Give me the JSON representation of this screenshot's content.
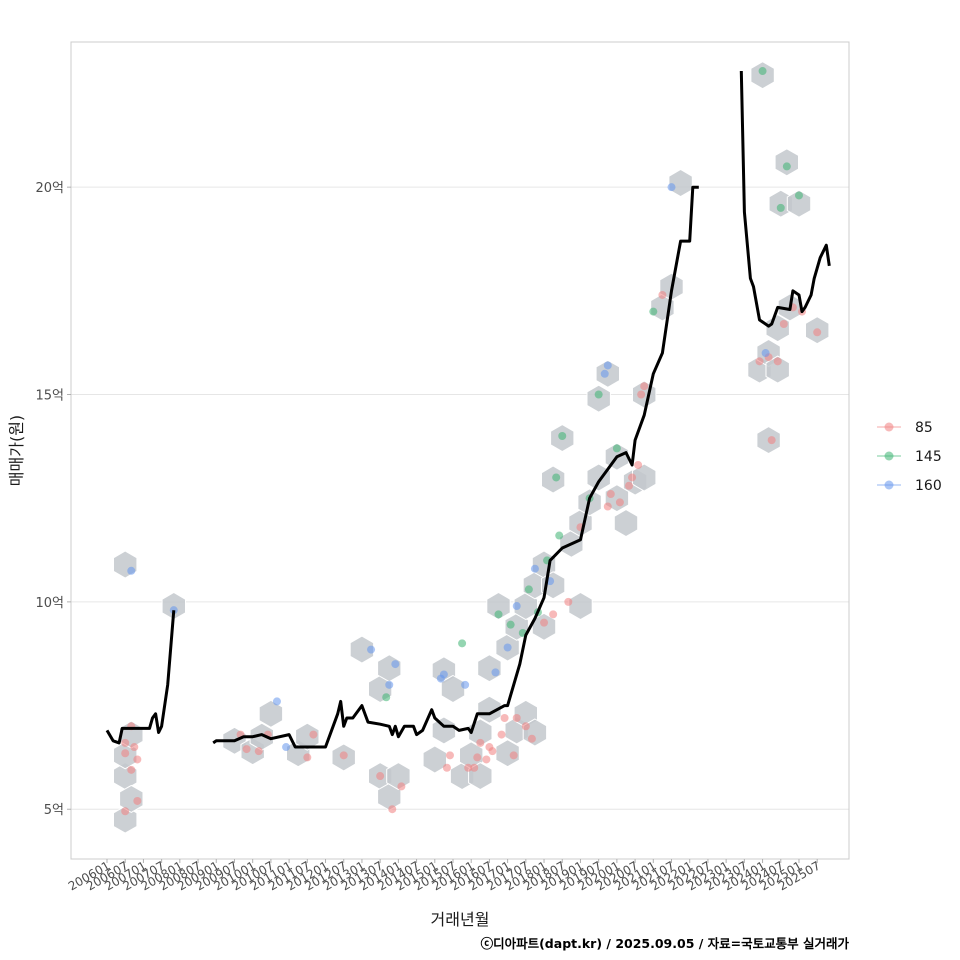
{
  "chart_data": {
    "type": "scatter",
    "title": "",
    "xlabel": "거래년월",
    "ylabel": "매매가(원)",
    "ylim": [
      3.8,
      23.5
    ],
    "grid": true,
    "legend_position": "right",
    "caption": "ⓒ디아파트(dapt.kr) / 2025.09.05 / 자료=국토교통부 실거래가",
    "x_tick_labels": [
      "200601",
      "200607",
      "200701",
      "200707",
      "200801",
      "200807",
      "200901",
      "200907",
      "201001",
      "201007",
      "201101",
      "201107",
      "201201",
      "201207",
      "201301",
      "201307",
      "201401",
      "201407",
      "201501",
      "201507",
      "201601",
      "201607",
      "201701",
      "201707",
      "201801",
      "201807",
      "201901",
      "201907",
      "202001",
      "202007",
      "202101",
      "202107",
      "202201",
      "202207",
      "202301",
      "202307",
      "202401",
      "202407",
      "202501",
      "202507"
    ],
    "y_ticks": [
      {
        "value": 5,
        "label": "5억"
      },
      {
        "value": 10,
        "label": "10억"
      },
      {
        "value": 15,
        "label": "15억"
      },
      {
        "value": 20,
        "label": "20억"
      }
    ],
    "legend": [
      {
        "name": "85",
        "color": "#F08080"
      },
      {
        "name": "145",
        "color": "#3CB371"
      },
      {
        "name": "160",
        "color": "#6495ED"
      }
    ],
    "hex_color": "#C3C8CD",
    "trend_line": {
      "color": "#000000",
      "segments": [
        [
          [
            "200601",
            6.9
          ],
          [
            "200603",
            6.65
          ],
          [
            "200605",
            6.6
          ],
          [
            "200606",
            6.95
          ],
          [
            "200701",
            6.95
          ],
          [
            "200703",
            6.95
          ],
          [
            "200704",
            7.2
          ],
          [
            "200705",
            7.3
          ],
          [
            "200706",
            6.85
          ],
          [
            "200707",
            7.0
          ],
          [
            "200709",
            8.0
          ],
          [
            "200711",
            9.8
          ]
        ],
        [
          [
            "200812",
            6.6
          ],
          [
            "200901",
            6.65
          ],
          [
            "200907",
            6.65
          ],
          [
            "200910",
            6.75
          ],
          [
            "201001",
            6.75
          ],
          [
            "201004",
            6.8
          ],
          [
            "201007",
            6.7
          ],
          [
            "201101",
            6.8
          ],
          [
            "201103",
            6.5
          ],
          [
            "201201",
            6.5
          ],
          [
            "201205",
            7.3
          ],
          [
            "201206",
            7.6
          ],
          [
            "201207",
            7.0
          ],
          [
            "201208",
            7.2
          ],
          [
            "201210",
            7.2
          ],
          [
            "201301",
            7.5
          ],
          [
            "201303",
            7.1
          ],
          [
            "201307",
            7.05
          ],
          [
            "201310",
            7.0
          ],
          [
            "201311",
            6.8
          ],
          [
            "201312",
            7.0
          ],
          [
            "201401",
            6.75
          ],
          [
            "201403",
            7.0
          ],
          [
            "201406",
            7.0
          ],
          [
            "201407",
            6.8
          ],
          [
            "201409",
            6.9
          ],
          [
            "201412",
            7.4
          ],
          [
            "201501",
            7.2
          ],
          [
            "201504",
            7.0
          ],
          [
            "201507",
            7.0
          ],
          [
            "201509",
            6.9
          ],
          [
            "201512",
            6.95
          ],
          [
            "201601",
            6.85
          ],
          [
            "201603",
            7.3
          ],
          [
            "201607",
            7.3
          ],
          [
            "201612",
            7.5
          ],
          [
            "201701",
            7.5
          ],
          [
            "201703",
            8.0
          ],
          [
            "201705",
            8.5
          ],
          [
            "201707",
            9.2
          ],
          [
            "201710",
            9.6
          ],
          [
            "201801",
            10.1
          ],
          [
            "201803",
            11.0
          ],
          [
            "201807",
            11.3
          ],
          [
            "201901",
            11.5
          ],
          [
            "201904",
            12.5
          ],
          [
            "201907",
            12.9
          ],
          [
            "201910",
            13.2
          ],
          [
            "202001",
            13.5
          ],
          [
            "202004",
            13.6
          ],
          [
            "202006",
            13.3
          ],
          [
            "202007",
            13.9
          ],
          [
            "202010",
            14.5
          ],
          [
            "202101",
            15.5
          ],
          [
            "202104",
            16.0
          ],
          [
            "202107",
            17.5
          ],
          [
            "202110",
            18.7
          ],
          [
            "202201",
            18.7
          ],
          [
            "202202",
            20.0
          ],
          [
            "202204",
            20.0
          ]
        ],
        [
          [
            "202306",
            22.8
          ],
          [
            "202307",
            19.4
          ],
          [
            "202309",
            17.8
          ],
          [
            "202310",
            17.6
          ],
          [
            "202312",
            16.8
          ],
          [
            "202403",
            16.65
          ],
          [
            "202404",
            16.7
          ],
          [
            "202406",
            17.1
          ],
          [
            "202410",
            17.05
          ],
          [
            "202411",
            17.5
          ],
          [
            "202501",
            17.4
          ],
          [
            "202502",
            17.0
          ],
          [
            "202503",
            17.1
          ],
          [
            "202505",
            17.4
          ],
          [
            "202506",
            17.8
          ],
          [
            "202508",
            18.3
          ],
          [
            "202510",
            18.6
          ],
          [
            "202511",
            18.1
          ]
        ]
      ]
    },
    "hexbins": [
      [
        "200607",
        4.75
      ],
      [
        "200607",
        5.8
      ],
      [
        "200609",
        5.25
      ],
      [
        "200607",
        6.3
      ],
      [
        "200609",
        6.8
      ],
      [
        "200607",
        10.9
      ],
      [
        "200711",
        9.9
      ],
      [
        "200907",
        6.65
      ],
      [
        "201001",
        6.4
      ],
      [
        "201004",
        6.75
      ],
      [
        "201007",
        7.3
      ],
      [
        "201104",
        6.35
      ],
      [
        "201107",
        6.75
      ],
      [
        "201207",
        6.25
      ],
      [
        "201301",
        8.85
      ],
      [
        "201307",
        7.9
      ],
      [
        "201310",
        8.4
      ],
      [
        "201307",
        5.8
      ],
      [
        "201310",
        5.3
      ],
      [
        "201401",
        5.8
      ],
      [
        "201501",
        6.2
      ],
      [
        "201504",
        6.9
      ],
      [
        "201504",
        8.35
      ],
      [
        "201507",
        7.9
      ],
      [
        "201510",
        5.8
      ],
      [
        "201601",
        6.3
      ],
      [
        "201604",
        5.8
      ],
      [
        "201604",
        6.85
      ],
      [
        "201607",
        7.4
      ],
      [
        "201607",
        8.4
      ],
      [
        "201610",
        9.9
      ],
      [
        "201701",
        8.9
      ],
      [
        "201701",
        6.35
      ],
      [
        "201704",
        9.4
      ],
      [
        "201704",
        6.9
      ],
      [
        "201707",
        7.3
      ],
      [
        "201707",
        9.9
      ],
      [
        "201710",
        10.4
      ],
      [
        "201710",
        6.85
      ],
      [
        "201801",
        10.9
      ],
      [
        "201801",
        9.4
      ],
      [
        "201804",
        10.4
      ],
      [
        "201804",
        12.95
      ],
      [
        "201807",
        13.95
      ],
      [
        "201810",
        11.4
      ],
      [
        "201901",
        9.9
      ],
      [
        "201901",
        11.9
      ],
      [
        "201904",
        12.4
      ],
      [
        "201907",
        13.0
      ],
      [
        "201907",
        14.9
      ],
      [
        "201910",
        15.5
      ],
      [
        "202001",
        12.5
      ],
      [
        "202001",
        13.5
      ],
      [
        "202004",
        11.9
      ],
      [
        "202007",
        12.9
      ],
      [
        "202010",
        13.0
      ],
      [
        "202010",
        15.0
      ],
      [
        "202104",
        17.1
      ],
      [
        "202107",
        17.6
      ],
      [
        "202110",
        20.1
      ],
      [
        "202401",
        22.7
      ],
      [
        "202312",
        15.6
      ],
      [
        "202403",
        13.9
      ],
      [
        "202403",
        16.0
      ],
      [
        "202406",
        15.6
      ],
      [
        "202406",
        16.6
      ],
      [
        "202407",
        19.6
      ],
      [
        "202409",
        20.6
      ],
      [
        "202410",
        17.1
      ],
      [
        "202501",
        19.6
      ],
      [
        "202507",
        16.55
      ]
    ],
    "points": [
      [
        "200607",
        4.95,
        "85"
      ],
      [
        "200607",
        6.35,
        "85"
      ],
      [
        "200607",
        6.6,
        "85"
      ],
      [
        "200609",
        7.0,
        "85"
      ],
      [
        "200610",
        6.5,
        "85"
      ],
      [
        "200611",
        6.2,
        "85"
      ],
      [
        "200609",
        5.95,
        "85"
      ],
      [
        "200611",
        5.2,
        "85"
      ],
      [
        "200609",
        10.75,
        "160"
      ],
      [
        "200711",
        9.8,
        "160"
      ],
      [
        "200909",
        6.8,
        "85"
      ],
      [
        "200911",
        6.45,
        "85"
      ],
      [
        "201003",
        6.4,
        "85"
      ],
      [
        "201006",
        6.8,
        "85"
      ],
      [
        "201009",
        7.6,
        "160"
      ],
      [
        "201012",
        6.5,
        "160"
      ],
      [
        "201107",
        6.25,
        "85"
      ],
      [
        "201109",
        6.8,
        "85"
      ],
      [
        "201207",
        6.3,
        "85"
      ],
      [
        "201304",
        8.85,
        "160"
      ],
      [
        "201307",
        5.8,
        "85"
      ],
      [
        "201309",
        7.7,
        "145"
      ],
      [
        "201310",
        8.0,
        "160"
      ],
      [
        "201312",
        8.5,
        "160"
      ],
      [
        "201311",
        5.0,
        "85"
      ],
      [
        "201402",
        5.55,
        "85"
      ],
      [
        "201503",
        8.15,
        "160"
      ],
      [
        "201504",
        8.25,
        "160"
      ],
      [
        "201506",
        6.3,
        "85"
      ],
      [
        "201505",
        6.0,
        "85"
      ],
      [
        "201510",
        9.0,
        "145"
      ],
      [
        "201511",
        8.0,
        "160"
      ],
      [
        "201512",
        6.0,
        "85"
      ],
      [
        "201602",
        6.0,
        "85"
      ],
      [
        "201603",
        6.25,
        "85"
      ],
      [
        "201604",
        6.6,
        "85"
      ],
      [
        "201606",
        6.2,
        "85"
      ],
      [
        "201607",
        6.5,
        "85"
      ],
      [
        "201608",
        6.4,
        "85"
      ],
      [
        "201609",
        8.3,
        "160"
      ],
      [
        "201610",
        9.7,
        "145"
      ],
      [
        "201611",
        6.8,
        "85"
      ],
      [
        "201612",
        7.2,
        "85"
      ],
      [
        "201701",
        8.9,
        "160"
      ],
      [
        "201702",
        9.45,
        "145"
      ],
      [
        "201703",
        6.3,
        "85"
      ],
      [
        "201704",
        9.9,
        "160"
      ],
      [
        "201704",
        7.2,
        "85"
      ],
      [
        "201706",
        9.25,
        "145"
      ],
      [
        "201707",
        7.0,
        "85"
      ],
      [
        "201708",
        10.3,
        "145"
      ],
      [
        "201709",
        6.7,
        "85"
      ],
      [
        "201710",
        10.8,
        "160"
      ],
      [
        "201711",
        9.75,
        "145"
      ],
      [
        "201801",
        9.5,
        "85"
      ],
      [
        "201802",
        11.0,
        "145"
      ],
      [
        "201803",
        10.5,
        "160"
      ],
      [
        "201804",
        9.7,
        "85"
      ],
      [
        "201805",
        13.0,
        "145"
      ],
      [
        "201806",
        11.6,
        "145"
      ],
      [
        "201807",
        14.0,
        "145"
      ],
      [
        "201809",
        10.0,
        "85"
      ],
      [
        "201901",
        11.8,
        "85"
      ],
      [
        "201904",
        12.5,
        "145"
      ],
      [
        "201907",
        15.0,
        "145"
      ],
      [
        "201909",
        15.5,
        "160"
      ],
      [
        "201910",
        15.7,
        "160"
      ],
      [
        "201910",
        12.3,
        "85"
      ],
      [
        "201911",
        12.6,
        "85"
      ],
      [
        "202001",
        13.7,
        "145"
      ],
      [
        "202002",
        12.4,
        "85"
      ],
      [
        "202005",
        12.8,
        "85"
      ],
      [
        "202006",
        13.0,
        "85"
      ],
      [
        "202008",
        13.3,
        "85"
      ],
      [
        "202009",
        15.0,
        "85"
      ],
      [
        "202010",
        15.2,
        "85"
      ],
      [
        "202101",
        17.0,
        "145"
      ],
      [
        "202104",
        17.4,
        "85"
      ],
      [
        "202107",
        20.0,
        "160"
      ],
      [
        "202401",
        22.8,
        "145"
      ],
      [
        "202312",
        15.8,
        "85"
      ],
      [
        "202403",
        15.9,
        "85"
      ],
      [
        "202402",
        16.0,
        "160"
      ],
      [
        "202404",
        13.9,
        "85"
      ],
      [
        "202406",
        15.8,
        "85"
      ],
      [
        "202408",
        16.7,
        "85"
      ],
      [
        "202407",
        19.5,
        "145"
      ],
      [
        "202409",
        20.5,
        "145"
      ],
      [
        "202411",
        17.1,
        "85"
      ],
      [
        "202501",
        19.8,
        "145"
      ],
      [
        "202502",
        17.0,
        "85"
      ],
      [
        "202507",
        16.5,
        "85"
      ]
    ]
  }
}
